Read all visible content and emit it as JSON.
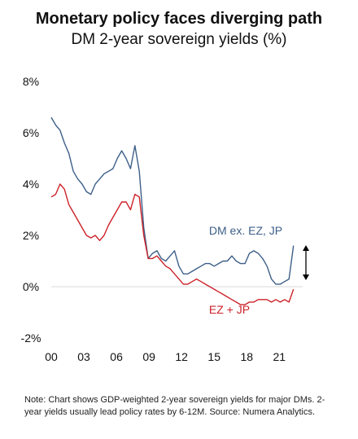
{
  "chart_data": {
    "type": "line",
    "title": "Monetary policy faces diverging path",
    "subtitle": "DM 2-year sovereign yields (%)",
    "xlabel": "",
    "ylabel": "",
    "x_start": 2000.0,
    "x_end": 2022.3,
    "xlim": [
      2000,
      2023
    ],
    "ylim": [
      -2,
      8
    ],
    "y_ticks": [
      {
        "v": 8,
        "label": "8%"
      },
      {
        "v": 6,
        "label": "6%"
      },
      {
        "v": 4,
        "label": "4%"
      },
      {
        "v": 2,
        "label": "2%"
      },
      {
        "v": 0,
        "label": "0%"
      },
      {
        "v": -2,
        "label": "-2%"
      }
    ],
    "x_ticks": [
      {
        "v": 2000,
        "label": "00"
      },
      {
        "v": 2003,
        "label": "03"
      },
      {
        "v": 2006,
        "label": "06"
      },
      {
        "v": 2009,
        "label": "09"
      },
      {
        "v": 2012,
        "label": "12"
      },
      {
        "v": 2015,
        "label": "15"
      },
      {
        "v": 2018,
        "label": "18"
      },
      {
        "v": 2021,
        "label": "21"
      }
    ],
    "grid": false,
    "zero_line": true,
    "series": [
      {
        "name": "DM ex. EZ, JP",
        "color": "#3d5f88",
        "values": [
          6.6,
          6.3,
          6.1,
          5.6,
          5.2,
          4.5,
          4.2,
          4.0,
          3.7,
          3.6,
          4.0,
          4.2,
          4.4,
          4.5,
          4.6,
          5.0,
          5.3,
          5.0,
          4.6,
          5.5,
          4.5,
          2.3,
          1.1,
          1.3,
          1.4,
          1.1,
          1.0,
          1.2,
          1.4,
          0.8,
          0.5,
          0.5,
          0.6,
          0.7,
          0.8,
          0.9,
          0.9,
          0.8,
          0.9,
          1.0,
          1.0,
          1.2,
          1.0,
          0.9,
          0.9,
          1.3,
          1.4,
          1.3,
          1.1,
          0.8,
          0.3,
          0.1,
          0.1,
          0.2,
          0.3,
          1.6
        ]
      },
      {
        "name": "EZ + JP",
        "color": "#cc2229",
        "values": [
          3.5,
          3.6,
          4.0,
          3.8,
          3.2,
          2.9,
          2.6,
          2.3,
          2.0,
          1.9,
          2.0,
          1.8,
          2.0,
          2.4,
          2.7,
          3.0,
          3.3,
          3.3,
          3.0,
          3.6,
          3.5,
          2.0,
          1.1,
          1.1,
          1.2,
          1.0,
          0.8,
          0.7,
          0.5,
          0.3,
          0.1,
          0.1,
          0.2,
          0.3,
          0.2,
          0.1,
          0.0,
          -0.1,
          -0.2,
          -0.3,
          -0.4,
          -0.5,
          -0.6,
          -0.7,
          -0.7,
          -0.6,
          -0.6,
          -0.5,
          -0.5,
          -0.5,
          -0.6,
          -0.5,
          -0.6,
          -0.5,
          -0.6,
          -0.1
        ]
      }
    ],
    "annotations": [
      {
        "text": "DM ex. EZ, JP",
        "series": 0
      },
      {
        "text": "EZ + JP",
        "series": 1
      }
    ],
    "note": "Note: Chart shows GDP-weighted 2-year sovereign yields for major DMs. 2-year yields usually lead policy rates by 6-12M. Source: Numera Analytics."
  }
}
